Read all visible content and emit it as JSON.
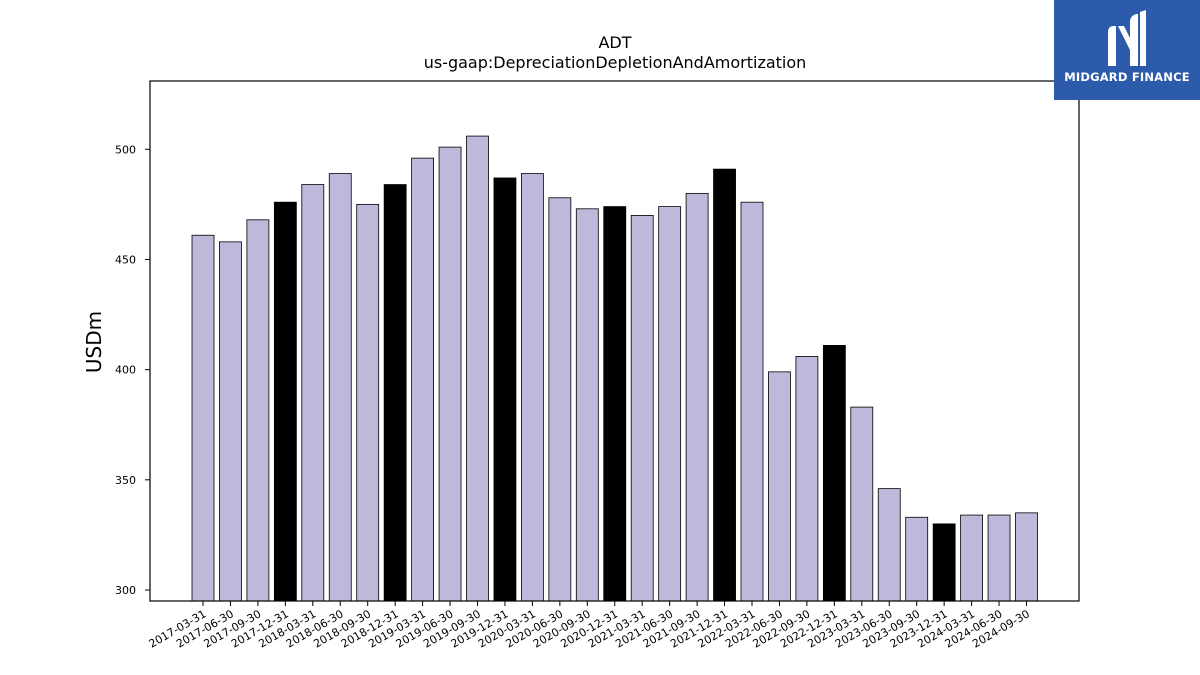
{
  "logo": {
    "text": "MIDGARD FINANCE",
    "background": "#2c5bab",
    "icon": "midgard-logo-icon"
  },
  "chart_data": {
    "type": "bar",
    "title": "ADT",
    "subtitle": "us-gaap:DepreciationDepletionAndAmortization",
    "xlabel": "",
    "ylabel": "USDm",
    "ylim": [
      295,
      531
    ],
    "yticks": [
      300,
      350,
      400,
      450,
      500
    ],
    "grid": false,
    "colors": {
      "default_bar": "#bcb9da",
      "year_end_bar": "#000000",
      "bar_edge": "#000000"
    },
    "categories": [
      "2017-03-31",
      "2017-06-30",
      "2017-09-30",
      "2017-12-31",
      "2018-03-31",
      "2018-06-30",
      "2018-09-30",
      "2018-12-31",
      "2019-03-31",
      "2019-06-30",
      "2019-09-30",
      "2019-12-31",
      "2020-03-31",
      "2020-06-30",
      "2020-09-30",
      "2020-12-31",
      "2021-03-31",
      "2021-06-30",
      "2021-09-30",
      "2021-12-31",
      "2022-03-31",
      "2022-06-30",
      "2022-09-30",
      "2022-12-31",
      "2023-03-31",
      "2023-06-30",
      "2023-09-30",
      "2023-12-31",
      "2024-03-31",
      "2024-06-30",
      "2024-09-30"
    ],
    "values": [
      461,
      458,
      468,
      476,
      484,
      489,
      475,
      484,
      496,
      501,
      506,
      487,
      489,
      478,
      473,
      474,
      470,
      474,
      480,
      491,
      476,
      399,
      406,
      411,
      383,
      346,
      333,
      330,
      334,
      334,
      335
    ],
    "highlighted": [
      false,
      false,
      false,
      true,
      false,
      false,
      false,
      true,
      false,
      false,
      false,
      true,
      false,
      false,
      false,
      true,
      false,
      false,
      false,
      true,
      false,
      false,
      false,
      true,
      false,
      false,
      false,
      true,
      false,
      false,
      false
    ]
  }
}
